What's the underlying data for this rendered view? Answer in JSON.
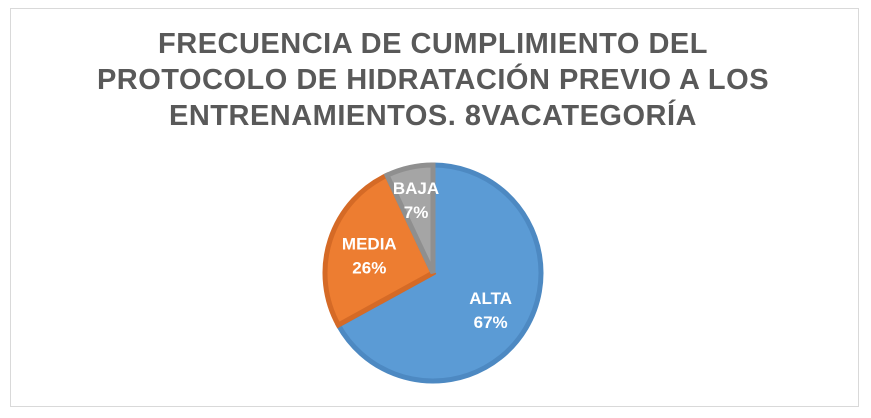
{
  "chart_data": {
    "type": "pie",
    "title_lines": [
      "FRECUENCIA DE CUMPLIMIENTO DEL",
      "PROTOCOLO DE HIDRATACIÓN PREVIO A LOS",
      "ENTRENAMIENTOS. 8VACATEGORÍA"
    ],
    "slices": [
      {
        "label": "ALTA",
        "value": 67,
        "pct_label": "67%",
        "color": "#5B9BD5",
        "stroke": "#4D89C2"
      },
      {
        "label": "MEDIA",
        "value": 26,
        "pct_label": "26%",
        "color": "#ED7D31",
        "stroke": "#D56A26"
      },
      {
        "label": "BAJA",
        "value": 7,
        "pct_label": "7%",
        "color": "#A5A5A5",
        "stroke": "#8F8F8F"
      }
    ],
    "start_angle_deg": 0,
    "direction": "clockwise",
    "legend": "none"
  }
}
